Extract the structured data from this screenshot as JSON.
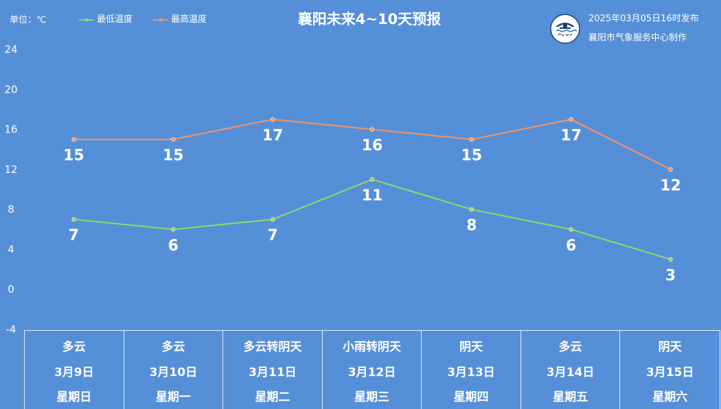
{
  "chart_data": {
    "type": "line",
    "title": "襄阳未来4~10天预报",
    "unit": "单位：℃",
    "categories": [
      "3月9日",
      "3月10日",
      "3月11日",
      "3月12日",
      "3月13日",
      "3月14日",
      "3月15日"
    ],
    "weather": [
      "多云",
      "多云",
      "多云转阴天",
      "小雨转阴天",
      "阴天",
      "多云",
      "阴天"
    ],
    "weekdays": [
      "星期日",
      "星期一",
      "星期二",
      "星期三",
      "星期四",
      "星期五",
      "星期六"
    ],
    "series": [
      {
        "name": "最低温度",
        "color": "#8fd46c",
        "values": [
          7,
          6,
          7,
          11,
          8,
          6,
          3
        ]
      },
      {
        "name": "最高温度",
        "color": "#f0926a",
        "values": [
          15,
          15,
          17,
          16,
          15,
          17,
          12
        ]
      }
    ],
    "ylim": [
      -4,
      24
    ],
    "yticks": [
      24,
      20,
      16,
      12,
      8,
      4,
      0,
      -4
    ],
    "grid": false,
    "legend_position": "top-left",
    "data_labels": true
  },
  "header": {
    "publish_time": "2025年03月05日16时发布",
    "producer": "襄阳市气象服务中心制作"
  },
  "colors": {
    "background": "#558fd8",
    "text": "#ffffff",
    "table_border": "#ffffff"
  },
  "logo": {
    "icon": "weather-service-logo"
  }
}
